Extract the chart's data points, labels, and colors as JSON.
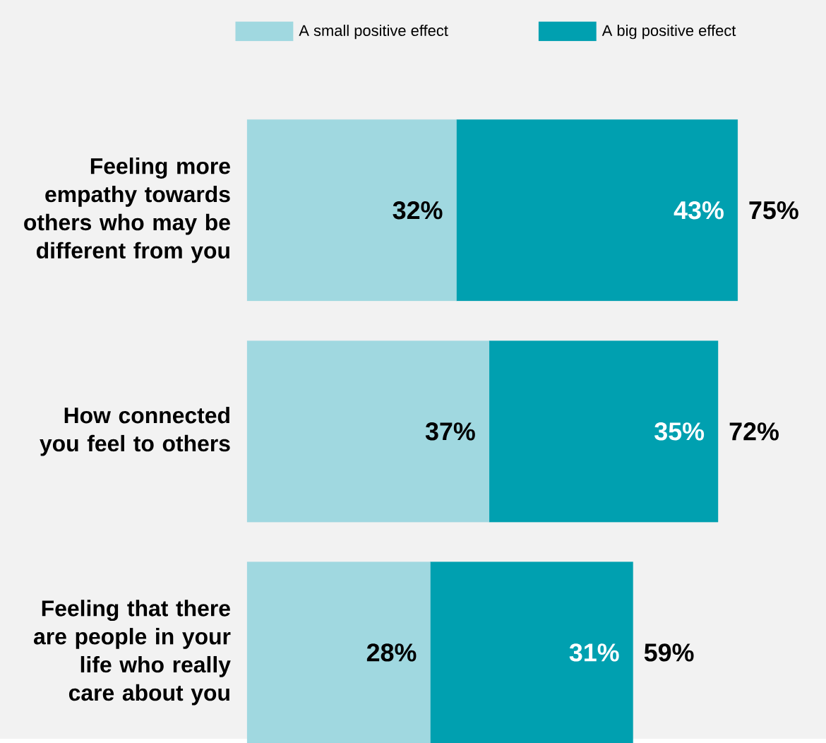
{
  "chart_data": {
    "type": "bar",
    "orientation": "horizontal",
    "stacked": true,
    "legend": "top",
    "categories": [
      "Feeling more empathy towards others who may be different from you",
      "How connected you feel to others",
      "Feeling that there are people in your life who really care about you"
    ],
    "series": [
      {
        "name": "A small positive effect",
        "color": "#a0d8e0",
        "values": [
          32,
          37,
          28
        ],
        "value_labels": [
          "32%",
          "37%",
          "28%"
        ]
      },
      {
        "name": "A big positive effect",
        "color": "#00a0b0",
        "values": [
          43,
          35,
          31
        ],
        "value_labels": [
          "43%",
          "35%",
          "31%"
        ]
      }
    ],
    "totals": [
      "75%",
      "72%",
      "59%"
    ]
  }
}
